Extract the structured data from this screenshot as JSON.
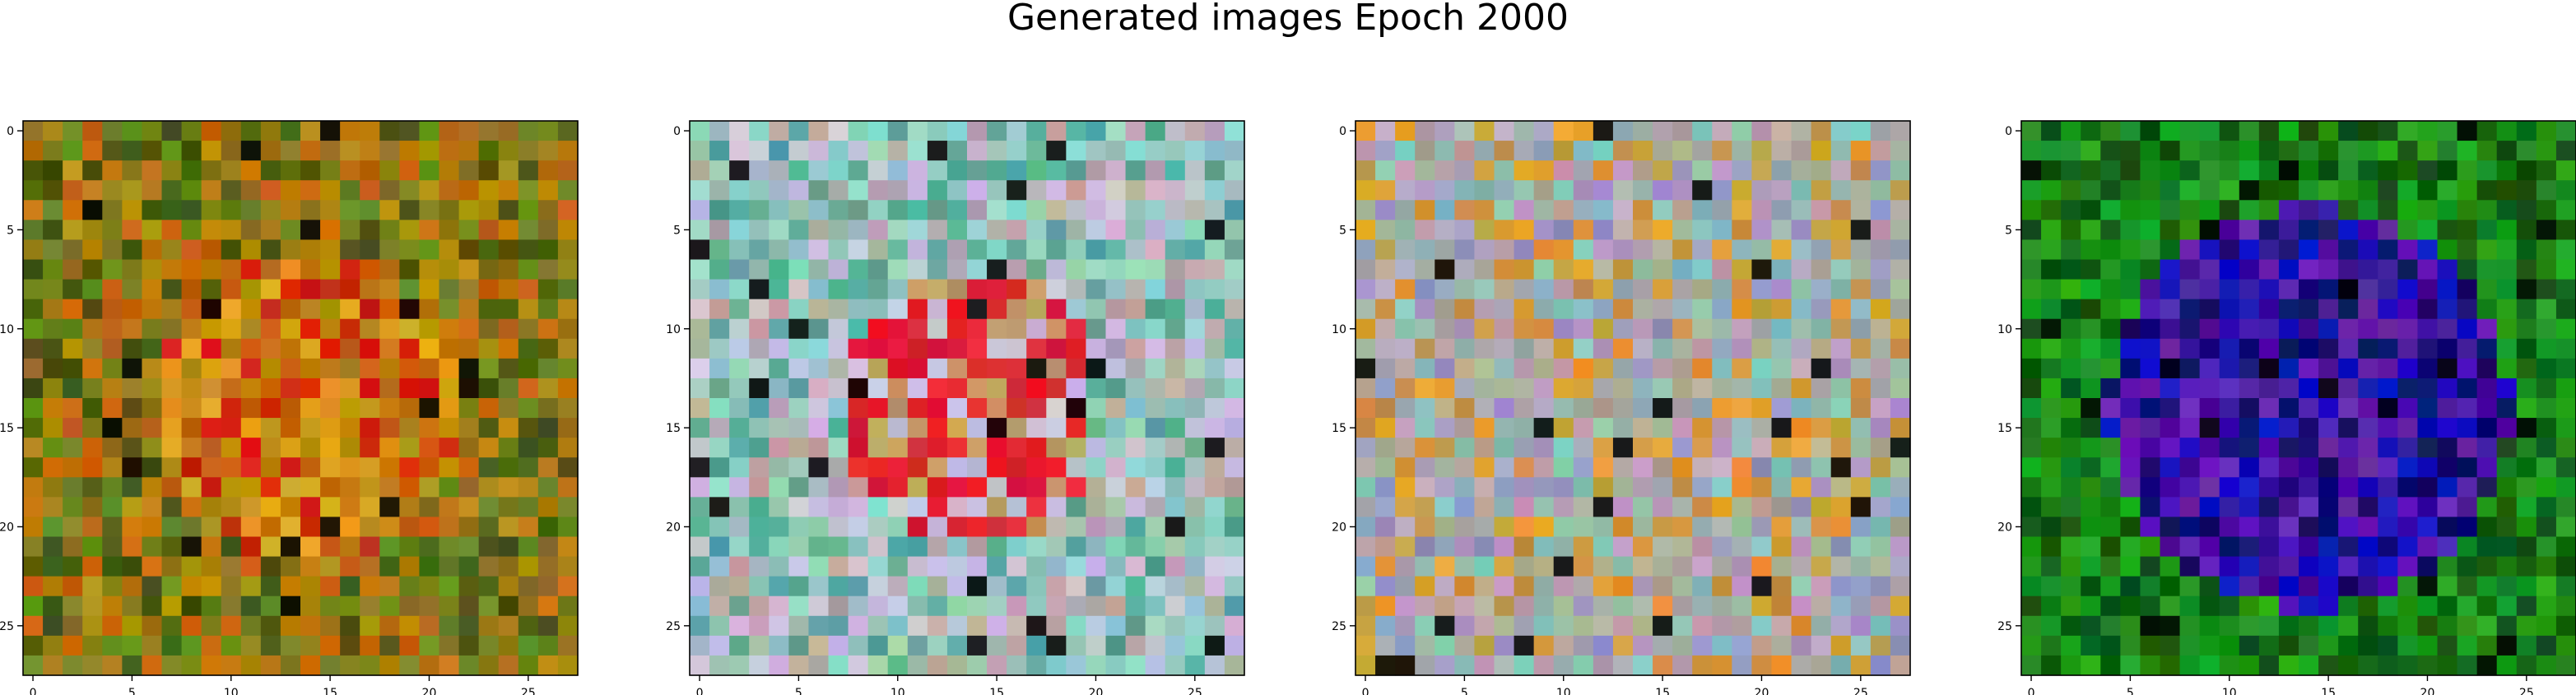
{
  "figure": {
    "title": "Generated images Epoch 2000"
  },
  "image_grid": {
    "rows": 28,
    "cols": 28,
    "x_ticks": [
      "0",
      "5",
      "10",
      "15",
      "20",
      "25"
    ],
    "y_ticks": [
      "0",
      "5",
      "10",
      "15",
      "20",
      "25"
    ],
    "panels": [
      {
        "name": "panel-1",
        "dominant_colors": [
          "#c46a10",
          "#b58a12",
          "#8a7a1e",
          "#e0a020",
          "#d02010",
          "#6a8a20",
          "#4a5a12"
        ]
      },
      {
        "name": "panel-2",
        "dominant_colors": [
          "#98c8b8",
          "#b8a8a8",
          "#5aa898",
          "#e02030",
          "#c8c0d8",
          "#c0a060",
          "#90d0c8"
        ]
      },
      {
        "name": "panel-3",
        "dominant_colors": [
          "#b0a898",
          "#a0b0a8",
          "#b8a0b8",
          "#c89840",
          "#88c0b8",
          "#e09a30",
          "#9898c0"
        ]
      },
      {
        "name": "panel-4",
        "dominant_colors": [
          "#1a8a1a",
          "#20a020",
          "#105a10",
          "#1010c0",
          "#4010a0",
          "#6020b0",
          "#10106a"
        ]
      }
    ]
  }
}
